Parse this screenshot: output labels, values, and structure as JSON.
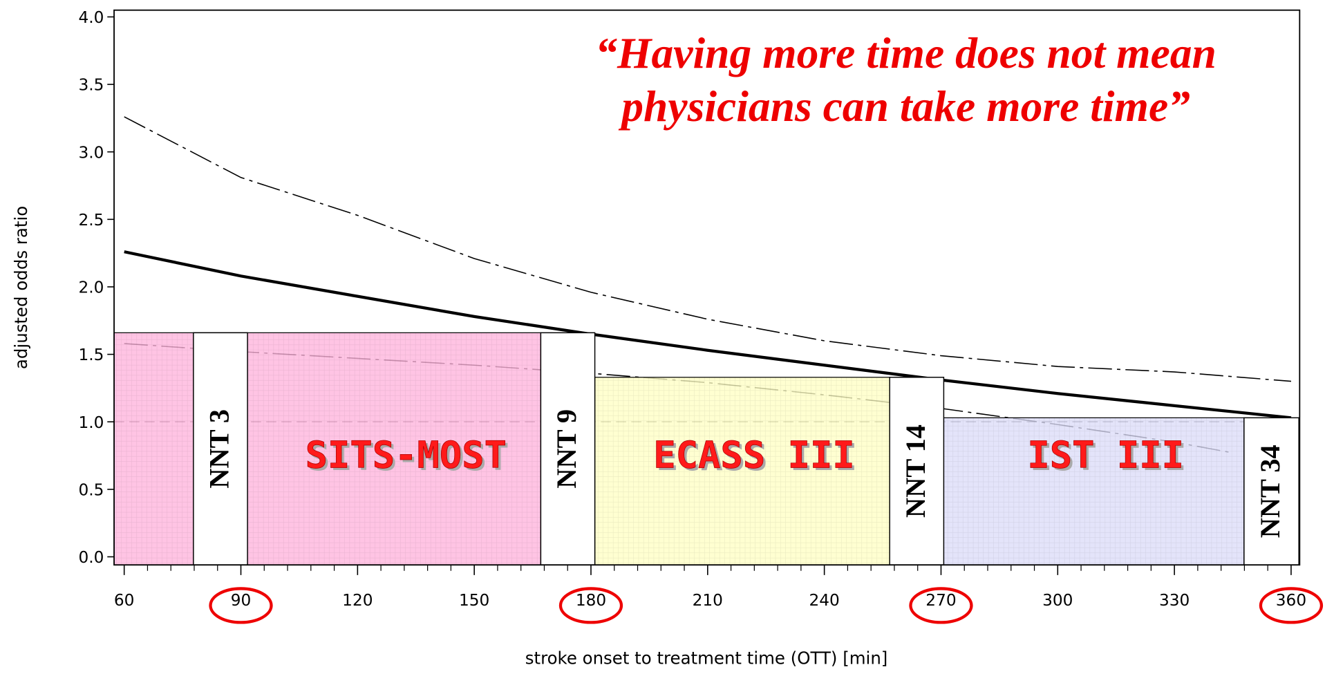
{
  "chart_data": {
    "type": "line",
    "quote": [
      "“Having more time does not mean",
      "physicians can take more time”"
    ],
    "ylabel": "adjusted odds ratio",
    "xlabel": "stroke onset to treatment time (OTT) [min]",
    "xlim": [
      57.4,
      362.2
    ],
    "ylim": [
      -0.06,
      4.05
    ],
    "xticks": [
      60,
      90,
      120,
      150,
      180,
      210,
      240,
      270,
      300,
      330,
      360
    ],
    "yticks": [
      {
        "value": 0,
        "label": "0.0"
      },
      {
        "value": 0.5,
        "label": "0.5"
      },
      {
        "value": 1,
        "label": "1.0"
      },
      {
        "value": 1.5,
        "label": "1.5"
      },
      {
        "value": 2,
        "label": "2.0"
      },
      {
        "value": 2.5,
        "label": "2.5"
      },
      {
        "value": 3,
        "label": "3.0"
      },
      {
        "value": 3.5,
        "label": "3.5"
      },
      {
        "value": 4,
        "label": "4.0"
      }
    ],
    "highlighted_xticks": [
      90,
      180,
      270,
      360
    ],
    "reference_y": 1,
    "series": [
      {
        "style": "dashdot",
        "color": "#000000",
        "x": [
          60,
          90,
          120,
          150,
          180,
          210,
          240,
          270,
          300,
          330,
          360
        ],
        "values": [
          3.26,
          2.81,
          2.53,
          2.21,
          1.96,
          1.76,
          1.6,
          1.49,
          1.41,
          1.37,
          1.3
        ]
      },
      {
        "style": "solid",
        "color": "#000000",
        "x": [
          60,
          90,
          120,
          150,
          180,
          210,
          240,
          270,
          300,
          330,
          360
        ],
        "values": [
          2.26,
          2.08,
          1.93,
          1.78,
          1.65,
          1.53,
          1.42,
          1.31,
          1.21,
          1.12,
          1.03
        ]
      },
      {
        "style": "dashdot",
        "color": "#000000",
        "x": [
          60,
          90,
          120,
          150,
          180,
          210,
          240,
          270,
          300,
          330,
          345
        ],
        "values": [
          1.58,
          1.52,
          1.47,
          1.42,
          1.36,
          1.29,
          1.2,
          1.1,
          0.98,
          0.85,
          0.77
        ]
      }
    ],
    "regions": [
      {
        "label": "SITS-MOST",
        "x0": 57.4,
        "x1": 167.1,
        "top": 1.66,
        "color": "#ffb3dc"
      },
      {
        "label": "ECASS III",
        "x0": 181,
        "x1": 256.8,
        "top": 1.33,
        "color": "#ffffc4"
      },
      {
        "label": "IST III",
        "x0": 270.7,
        "x1": 347.9,
        "top": 1.03,
        "color": "#dcdcf8"
      }
    ],
    "nnt_boxes": [
      {
        "label": "NNT 3",
        "x0": 77.8,
        "x1": 91.7,
        "top": 1.66
      },
      {
        "label": "NNT 9",
        "x0": 167.1,
        "x1": 181,
        "top": 1.66
      },
      {
        "label": "NNT 14",
        "x0": 256.8,
        "x1": 270.7,
        "top": 1.33
      },
      {
        "label": "NNT 34",
        "x0": 347.9,
        "x1": 362,
        "top": 1.03
      }
    ]
  }
}
